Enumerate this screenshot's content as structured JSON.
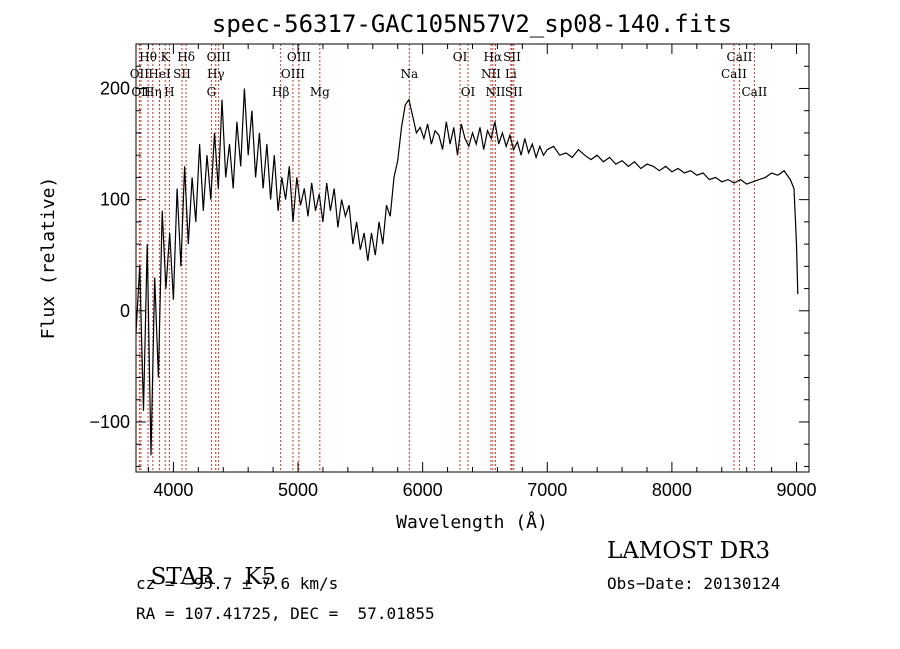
{
  "chart_data": {
    "type": "line",
    "title": "spec-56317-GAC105N57V2_sp08-140.fits",
    "xlabel": "Wavelength (Å)",
    "ylabel": "Flux (relative)",
    "xlim": [
      3700,
      9100
    ],
    "ylim": [
      -145,
      240
    ],
    "x_ticks": [
      4000,
      5000,
      6000,
      7000,
      8000,
      9000
    ],
    "y_ticks": [
      -100,
      0,
      100,
      200
    ],
    "grid": false,
    "series": [
      {
        "name": "flux",
        "x": [
          3700,
          3730,
          3760,
          3790,
          3820,
          3850,
          3880,
          3910,
          3940,
          3970,
          4000,
          4030,
          4060,
          4090,
          4120,
          4150,
          4180,
          4210,
          4240,
          4270,
          4300,
          4330,
          4360,
          4390,
          4420,
          4450,
          4480,
          4510,
          4540,
          4570,
          4600,
          4630,
          4660,
          4690,
          4720,
          4750,
          4780,
          4810,
          4840,
          4870,
          4900,
          4930,
          4960,
          4990,
          5020,
          5050,
          5080,
          5110,
          5140,
          5170,
          5200,
          5230,
          5260,
          5290,
          5320,
          5350,
          5380,
          5410,
          5440,
          5470,
          5500,
          5530,
          5560,
          5590,
          5620,
          5650,
          5680,
          5710,
          5740,
          5770,
          5800,
          5830,
          5860,
          5890,
          5920,
          5950,
          5980,
          6010,
          6040,
          6070,
          6100,
          6130,
          6160,
          6190,
          6220,
          6250,
          6280,
          6310,
          6340,
          6370,
          6400,
          6430,
          6460,
          6490,
          6520,
          6550,
          6580,
          6610,
          6640,
          6670,
          6700,
          6730,
          6760,
          6790,
          6820,
          6850,
          6880,
          6910,
          6940,
          6970,
          7000,
          7050,
          7100,
          7150,
          7200,
          7250,
          7300,
          7350,
          7400,
          7450,
          7500,
          7550,
          7600,
          7650,
          7700,
          7750,
          7800,
          7850,
          7900,
          7950,
          8000,
          8050,
          8100,
          8150,
          8200,
          8250,
          8300,
          8350,
          8400,
          8450,
          8500,
          8550,
          8600,
          8650,
          8700,
          8750,
          8800,
          8850,
          8900,
          8950,
          8980,
          9000,
          9010
        ],
        "y": [
          -20,
          40,
          -90,
          60,
          -130,
          30,
          -60,
          90,
          20,
          70,
          10,
          110,
          40,
          130,
          60,
          120,
          80,
          150,
          90,
          140,
          100,
          160,
          110,
          190,
          120,
          150,
          110,
          170,
          130,
          200,
          140,
          180,
          120,
          160,
          110,
          150,
          100,
          140,
          90,
          120,
          100,
          130,
          80,
          120,
          95,
          110,
          85,
          115,
          90,
          105,
          80,
          115,
          90,
          110,
          75,
          100,
          85,
          95,
          60,
          80,
          55,
          70,
          45,
          70,
          50,
          80,
          60,
          95,
          85,
          120,
          135,
          165,
          185,
          190,
          175,
          160,
          165,
          155,
          168,
          150,
          162,
          158,
          145,
          170,
          150,
          165,
          140,
          168,
          155,
          148,
          160,
          150,
          165,
          145,
          162,
          155,
          170,
          150,
          160,
          148,
          158,
          145,
          152,
          140,
          155,
          142,
          150,
          138,
          148,
          140,
          145,
          148,
          140,
          142,
          138,
          145,
          140,
          136,
          140,
          134,
          138,
          132,
          135,
          130,
          134,
          128,
          132,
          130,
          126,
          130,
          125,
          128,
          124,
          126,
          122,
          124,
          118,
          120,
          116,
          118,
          115,
          118,
          114,
          116,
          118,
          120,
          124,
          122,
          126,
          118,
          110,
          60,
          15
        ]
      }
    ],
    "spectral_lines": [
      {
        "name": "Hθ",
        "x": 3797,
        "row": 1
      },
      {
        "name": "OII",
        "x": 3727,
        "row": 2
      },
      {
        "name": "OII",
        "x": 3740,
        "row": 3
      },
      {
        "name": "Hη",
        "x": 3835,
        "row": 3
      },
      {
        "name": "K",
        "x": 3934,
        "row": 1
      },
      {
        "name": "HeI",
        "x": 3889,
        "row": 2
      },
      {
        "name": "SII",
        "x": 4069,
        "row": 2
      },
      {
        "name": "H",
        "x": 3968,
        "row": 3
      },
      {
        "name": "Hδ",
        "x": 4102,
        "row": 1
      },
      {
        "name": "OIII",
        "x": 4363,
        "row": 1
      },
      {
        "name": "Hγ",
        "x": 4340,
        "row": 2
      },
      {
        "name": "G",
        "x": 4305,
        "row": 3
      },
      {
        "name": "Hβ",
        "x": 4861,
        "row": 3
      },
      {
        "name": "OIII",
        "x": 5007,
        "row": 1
      },
      {
        "name": "OIII",
        "x": 4959,
        "row": 2
      },
      {
        "name": "Mg",
        "x": 5175,
        "row": 3
      },
      {
        "name": "Na",
        "x": 5893,
        "row": 2
      },
      {
        "name": "OI",
        "x": 6300,
        "row": 1
      },
      {
        "name": "OI",
        "x": 6364,
        "row": 3
      },
      {
        "name": "Hα",
        "x": 6563,
        "row": 1
      },
      {
        "name": "NII",
        "x": 6548,
        "row": 2
      },
      {
        "name": "NII",
        "x": 6584,
        "row": 3
      },
      {
        "name": "SII",
        "x": 6717,
        "row": 1
      },
      {
        "name": "Li",
        "x": 6708,
        "row": 2
      },
      {
        "name": "SII",
        "x": 6731,
        "row": 3
      },
      {
        "name": "CaII",
        "x": 8542,
        "row": 1
      },
      {
        "name": "CaII",
        "x": 8498,
        "row": 2
      },
      {
        "name": "CaII",
        "x": 8662,
        "row": 3
      }
    ],
    "colors": {
      "line": "#000000",
      "marker": "#c0392b"
    }
  },
  "info": {
    "object_class": "STAR",
    "subclass": "K5",
    "survey": "LAMOST DR3",
    "redshift": "cz = −95.7 ± 7.6 km/s",
    "obs_date": "Obs−Date: 20130124",
    "coords": "RA = 107.41725, DEC =  57.01855"
  }
}
